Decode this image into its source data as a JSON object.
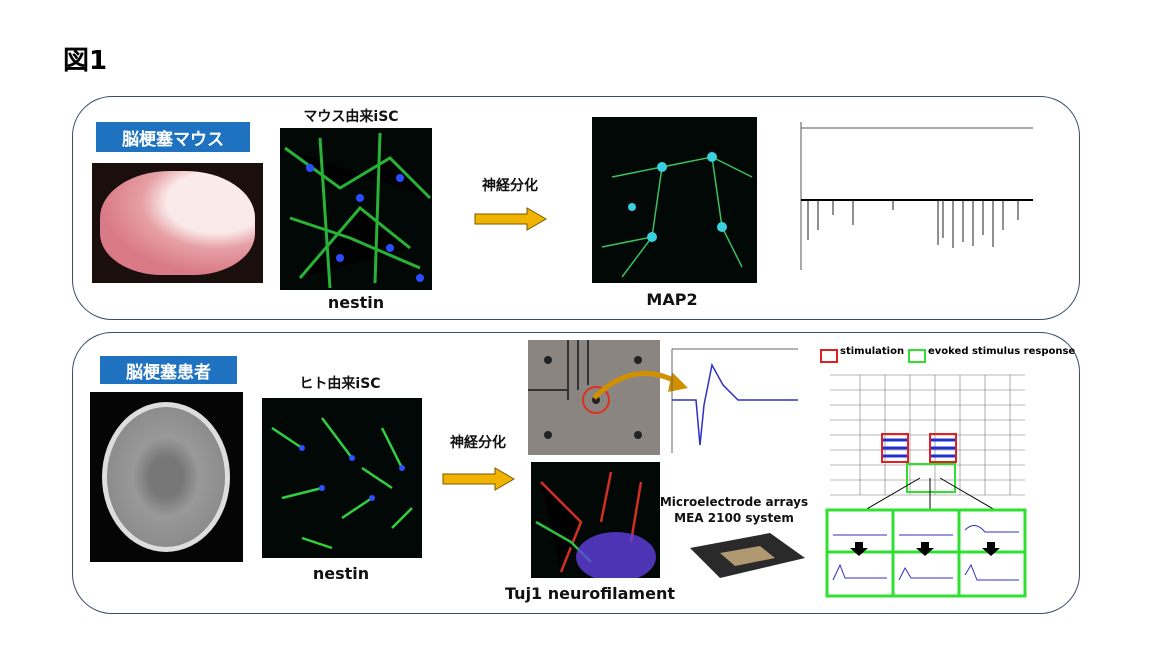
{
  "figure_label": "図1",
  "panels": [
    {
      "label": "脳梗塞マウス",
      "cell_title": "マウス由来iSC",
      "cell_stain": "nestin",
      "arrow_label": "神経分化",
      "neuron_stain": "MAP2"
    },
    {
      "label": "脳梗塞患者",
      "cell_title": "ヒト由来iSC",
      "cell_stain": "nestin",
      "arrow_label": "神経分化",
      "neuron_stain": "Tuj1 neurofilament",
      "mea_lines": [
        "Microelectrode arrays",
        "MEA 2100 system"
      ],
      "legend": [
        "stimulation",
        "evoked stimulus response"
      ]
    }
  ]
}
